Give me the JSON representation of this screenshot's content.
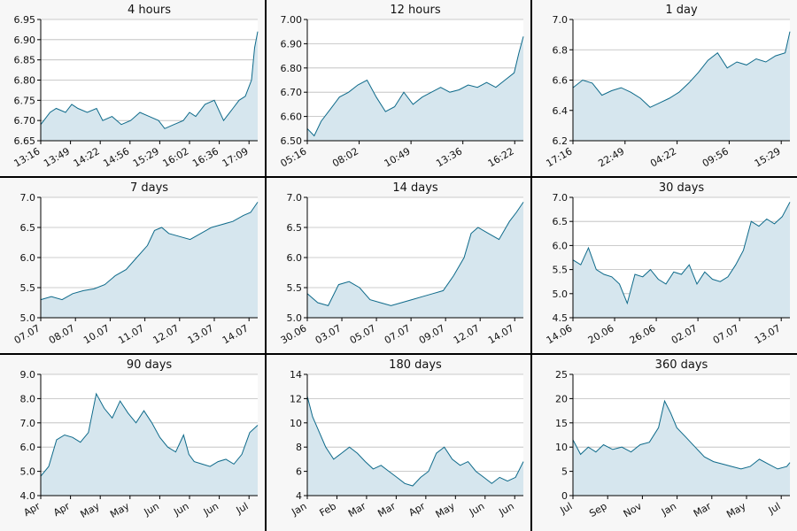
{
  "style": {
    "line_color": "#0e6a8a",
    "area_color": "#d6e6ee",
    "plot_bg": "#ffffff",
    "panel_bg": "#f7f7f7",
    "grid_color": "#bbbbbb",
    "separator_color": "#000000"
  },
  "chart_data": [
    {
      "type": "area",
      "title": "4 hours",
      "grid": true,
      "ylim": [
        6.65,
        6.95
      ],
      "yticks": [
        "6.65",
        "6.70",
        "6.75",
        "6.80",
        "6.85",
        "6.90",
        "6.95"
      ],
      "xticks": [
        "13:16",
        "13:49",
        "14:22",
        "14:56",
        "15:29",
        "16:02",
        "16:36",
        "17:09"
      ],
      "xlim": [
        0,
        7
      ],
      "series": [
        {
          "x": [
            0,
            0.1,
            0.3,
            0.5,
            0.8,
            1.0,
            1.2,
            1.5,
            1.8,
            2.0,
            2.3,
            2.6,
            2.9,
            3.2,
            3.5,
            3.8,
            4.0,
            4.3,
            4.6,
            4.8,
            5.0,
            5.3,
            5.6,
            5.9,
            6.0,
            6.2,
            6.4,
            6.6,
            6.8,
            6.9,
            7.0
          ],
          "y": [
            6.69,
            6.7,
            6.72,
            6.73,
            6.72,
            6.74,
            6.73,
            6.72,
            6.73,
            6.7,
            6.71,
            6.69,
            6.7,
            6.72,
            6.71,
            6.7,
            6.68,
            6.69,
            6.7,
            6.72,
            6.71,
            6.74,
            6.75,
            6.7,
            6.71,
            6.73,
            6.75,
            6.76,
            6.8,
            6.88,
            6.92
          ]
        }
      ]
    },
    {
      "type": "area",
      "title": "12 hours",
      "grid": true,
      "ylim": [
        6.5,
        7.0
      ],
      "yticks": [
        "6.50",
        "6.60",
        "6.70",
        "6.80",
        "6.90",
        "7.00"
      ],
      "xticks": [
        "05:16",
        "08:02",
        "10:49",
        "13:36",
        "16:22"
      ],
      "xlim": [
        0,
        4.7
      ],
      "series": [
        {
          "x": [
            0,
            0.15,
            0.3,
            0.5,
            0.7,
            0.9,
            1.1,
            1.3,
            1.5,
            1.7,
            1.9,
            2.1,
            2.3,
            2.5,
            2.7,
            2.9,
            3.1,
            3.3,
            3.5,
            3.7,
            3.9,
            4.1,
            4.3,
            4.5,
            4.6,
            4.7
          ],
          "y": [
            6.55,
            6.52,
            6.58,
            6.63,
            6.68,
            6.7,
            6.73,
            6.75,
            6.68,
            6.62,
            6.64,
            6.7,
            6.65,
            6.68,
            6.7,
            6.72,
            6.7,
            6.71,
            6.73,
            6.72,
            6.74,
            6.72,
            6.75,
            6.78,
            6.86,
            6.93
          ]
        }
      ]
    },
    {
      "type": "area",
      "title": "1 day",
      "grid": true,
      "ylim": [
        6.2,
        7.0
      ],
      "yticks": [
        "6.2",
        "6.4",
        "6.6",
        "6.8",
        "7.0"
      ],
      "xticks": [
        "17:16",
        "22:49",
        "04:22",
        "09:56",
        "15:29"
      ],
      "xlim": [
        0,
        4.5
      ],
      "series": [
        {
          "x": [
            0,
            0.2,
            0.4,
            0.6,
            0.8,
            1.0,
            1.2,
            1.4,
            1.6,
            1.8,
            2.0,
            2.2,
            2.4,
            2.6,
            2.8,
            3.0,
            3.2,
            3.4,
            3.6,
            3.8,
            4.0,
            4.2,
            4.4,
            4.5
          ],
          "y": [
            6.55,
            6.6,
            6.58,
            6.5,
            6.53,
            6.55,
            6.52,
            6.48,
            6.42,
            6.45,
            6.48,
            6.52,
            6.58,
            6.65,
            6.73,
            6.78,
            6.68,
            6.72,
            6.7,
            6.74,
            6.72,
            6.76,
            6.78,
            6.92
          ]
        }
      ]
    },
    {
      "type": "area",
      "title": "7 days",
      "grid": true,
      "ylim": [
        5.0,
        7.0
      ],
      "yticks": [
        "5.0",
        "5.5",
        "6.0",
        "6.5",
        "7.0"
      ],
      "xticks": [
        "07.07",
        "08.07",
        "10.07",
        "11.07",
        "12.07",
        "13.07",
        "14.07"
      ],
      "xlim": [
        0,
        6.1
      ],
      "series": [
        {
          "x": [
            0,
            0.3,
            0.6,
            0.9,
            1.2,
            1.5,
            1.8,
            2.1,
            2.4,
            2.7,
            3.0,
            3.2,
            3.4,
            3.6,
            3.9,
            4.2,
            4.5,
            4.8,
            5.1,
            5.4,
            5.7,
            5.9,
            6.1
          ],
          "y": [
            5.3,
            5.35,
            5.3,
            5.4,
            5.45,
            5.48,
            5.55,
            5.7,
            5.8,
            6.0,
            6.2,
            6.45,
            6.5,
            6.4,
            6.35,
            6.3,
            6.4,
            6.5,
            6.55,
            6.6,
            6.7,
            6.75,
            6.92
          ]
        }
      ]
    },
    {
      "type": "area",
      "title": "14 days",
      "grid": true,
      "ylim": [
        5.0,
        7.0
      ],
      "yticks": [
        "5.0",
        "5.5",
        "6.0",
        "6.5",
        "7.0"
      ],
      "xticks": [
        "30.06",
        "03.07",
        "05.07",
        "07.07",
        "09.07",
        "12.07",
        "14.07"
      ],
      "xlim": [
        0,
        6.2
      ],
      "series": [
        {
          "x": [
            0,
            0.3,
            0.6,
            0.9,
            1.2,
            1.5,
            1.8,
            2.1,
            2.4,
            2.7,
            3.0,
            3.3,
            3.6,
            3.9,
            4.2,
            4.5,
            4.7,
            4.9,
            5.2,
            5.5,
            5.8,
            6.0,
            6.2
          ],
          "y": [
            5.4,
            5.25,
            5.2,
            5.55,
            5.6,
            5.5,
            5.3,
            5.25,
            5.2,
            5.25,
            5.3,
            5.35,
            5.4,
            5.45,
            5.7,
            6.0,
            6.4,
            6.5,
            6.4,
            6.3,
            6.6,
            6.75,
            6.92
          ]
        }
      ]
    },
    {
      "type": "area",
      "title": "30 days",
      "grid": true,
      "ylim": [
        4.5,
        7.0
      ],
      "yticks": [
        "4.5",
        "5.0",
        "5.5",
        "6.0",
        "6.5",
        "7.0"
      ],
      "xticks": [
        "14.06",
        "20.06",
        "26.06",
        "02.07",
        "07.07",
        "13.07"
      ],
      "xlim": [
        0,
        5.6
      ],
      "series": [
        {
          "x": [
            0,
            0.2,
            0.4,
            0.6,
            0.8,
            1.0,
            1.2,
            1.4,
            1.6,
            1.8,
            2.0,
            2.2,
            2.4,
            2.6,
            2.8,
            3.0,
            3.2,
            3.4,
            3.6,
            3.8,
            4.0,
            4.2,
            4.4,
            4.6,
            4.8,
            5.0,
            5.2,
            5.4,
            5.6
          ],
          "y": [
            5.7,
            5.6,
            5.95,
            5.5,
            5.4,
            5.35,
            5.2,
            4.8,
            5.4,
            5.35,
            5.5,
            5.3,
            5.2,
            5.45,
            5.4,
            5.6,
            5.2,
            5.45,
            5.3,
            5.25,
            5.35,
            5.6,
            5.9,
            6.5,
            6.4,
            6.55,
            6.45,
            6.6,
            6.9
          ]
        }
      ]
    },
    {
      "type": "area",
      "title": "90 days",
      "grid": true,
      "ylim": [
        4.0,
        9.0
      ],
      "yticks": [
        "4.0",
        "5.0",
        "6.0",
        "7.0",
        "8.0",
        "9.0"
      ],
      "xticks": [
        "Apr",
        "Apr",
        "May",
        "May",
        "Jun",
        "Jun",
        "Jun",
        "Jul"
      ],
      "xlim": [
        0,
        8.2
      ],
      "series": [
        {
          "x": [
            0,
            0.3,
            0.6,
            0.9,
            1.2,
            1.5,
            1.8,
            2.1,
            2.4,
            2.7,
            3.0,
            3.3,
            3.6,
            3.9,
            4.2,
            4.5,
            4.8,
            5.1,
            5.4,
            5.6,
            5.8,
            6.1,
            6.4,
            6.7,
            7.0,
            7.3,
            7.6,
            7.9,
            8.2
          ],
          "y": [
            4.8,
            5.2,
            6.3,
            6.5,
            6.4,
            6.2,
            6.6,
            8.2,
            7.6,
            7.2,
            7.9,
            7.4,
            7.0,
            7.5,
            7.0,
            6.4,
            6.0,
            5.8,
            6.5,
            5.7,
            5.4,
            5.3,
            5.2,
            5.4,
            5.5,
            5.3,
            5.7,
            6.6,
            6.9
          ]
        }
      ]
    },
    {
      "type": "area",
      "title": "180 days",
      "grid": true,
      "ylim": [
        4,
        14
      ],
      "yticks": [
        "4",
        "6",
        "8",
        "10",
        "12",
        "14"
      ],
      "xticks": [
        "Jan",
        "Feb",
        "Mar",
        "Mar",
        "Apr",
        "May",
        "Jun",
        "Jun"
      ],
      "xlim": [
        0,
        8.2
      ],
      "series": [
        {
          "x": [
            0,
            0.2,
            0.4,
            0.7,
            1.0,
            1.3,
            1.6,
            1.9,
            2.2,
            2.5,
            2.8,
            3.1,
            3.4,
            3.7,
            4.0,
            4.3,
            4.6,
            4.9,
            5.2,
            5.5,
            5.8,
            6.1,
            6.4,
            6.7,
            7.0,
            7.3,
            7.6,
            7.9,
            8.2
          ],
          "y": [
            12.2,
            10.5,
            9.5,
            8.0,
            7.0,
            7.5,
            8.0,
            7.5,
            6.8,
            6.2,
            6.5,
            6.0,
            5.5,
            5.0,
            4.8,
            5.5,
            6.0,
            7.5,
            8.0,
            7.0,
            6.5,
            6.8,
            6.0,
            5.5,
            5.0,
            5.5,
            5.2,
            5.5,
            6.8
          ]
        }
      ]
    },
    {
      "type": "area",
      "title": "360 days",
      "grid": true,
      "ylim": [
        0,
        25
      ],
      "yticks": [
        "0",
        "5",
        "10",
        "15",
        "20",
        "25"
      ],
      "xticks": [
        "Jul",
        "Sep",
        "Nov",
        "Jan",
        "Mar",
        "May",
        "Jul"
      ],
      "xlim": [
        0,
        7.1
      ],
      "series": [
        {
          "x": [
            0,
            0.25,
            0.5,
            0.75,
            1.0,
            1.3,
            1.6,
            1.9,
            2.2,
            2.5,
            2.8,
            3.0,
            3.2,
            3.4,
            3.7,
            4.0,
            4.3,
            4.6,
            4.9,
            5.2,
            5.5,
            5.8,
            6.1,
            6.4,
            6.7,
            7.0,
            7.1
          ],
          "y": [
            11.5,
            8.5,
            10.0,
            9.0,
            10.5,
            9.5,
            10.0,
            9.0,
            10.5,
            11.0,
            14.0,
            19.5,
            17.0,
            14.0,
            12.0,
            10.0,
            8.0,
            7.0,
            6.5,
            6.0,
            5.5,
            6.0,
            7.5,
            6.5,
            5.5,
            6.0,
            6.8
          ]
        }
      ]
    }
  ]
}
